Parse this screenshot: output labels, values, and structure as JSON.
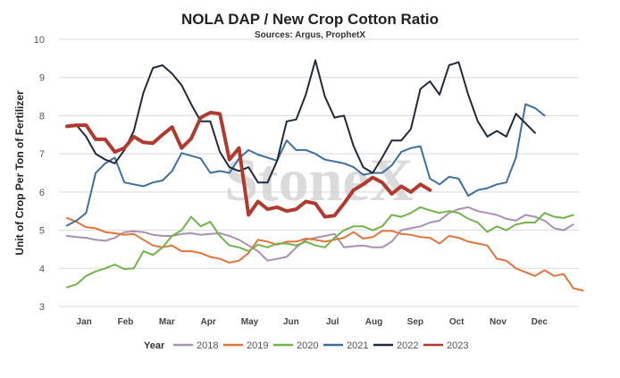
{
  "chart_data": {
    "type": "line",
    "title": "NOLA DAP / New Crop Cotton Ratio",
    "subtitle": "Sources: Argus, ProphetX",
    "ylabel": "Unit of Crop Per Ton of Fertilizer",
    "xlabel": "",
    "ylim": [
      3,
      10
    ],
    "yticks": [
      3,
      4,
      5,
      6,
      7,
      8,
      9,
      10
    ],
    "x_month_labels": [
      "Jan",
      "Feb",
      "Mar",
      "Apr",
      "May",
      "Jun",
      "Jul",
      "Aug",
      "Sep",
      "Oct",
      "Nov",
      "Dec"
    ],
    "legend_title": "Year",
    "legend_position": "bottom",
    "watermark": "StoneX",
    "grid": "horizontal",
    "series": [
      {
        "name": "2018",
        "color": "#a98fb3",
        "values": [
          4.85,
          4.82,
          4.8,
          4.75,
          4.72,
          4.8,
          4.95,
          4.97,
          4.95,
          4.88,
          4.85,
          4.85,
          4.9,
          4.92,
          4.88,
          4.9,
          4.92,
          4.85,
          4.75,
          4.6,
          4.45,
          4.2,
          4.25,
          4.3,
          4.55,
          4.75,
          4.8,
          4.85,
          4.9,
          4.55,
          4.58,
          4.6,
          4.55,
          4.55,
          4.7,
          5.0,
          5.05,
          5.1,
          5.2,
          5.25,
          5.45,
          5.55,
          5.6,
          5.5,
          5.45,
          5.4,
          5.3,
          5.25,
          5.4,
          5.35,
          5.25,
          5.05,
          5.0,
          5.15
        ]
      },
      {
        "name": "2019",
        "color": "#e2743a",
        "values": [
          5.32,
          5.22,
          5.08,
          5.05,
          4.95,
          4.92,
          4.88,
          4.9,
          4.75,
          4.6,
          4.55,
          4.6,
          4.45,
          4.45,
          4.4,
          4.3,
          4.25,
          4.15,
          4.2,
          4.4,
          4.75,
          4.7,
          4.62,
          4.7,
          4.7,
          4.78,
          4.75,
          4.7,
          4.75,
          4.8,
          4.95,
          4.78,
          4.82,
          4.98,
          4.98,
          4.9,
          4.88,
          4.82,
          4.8,
          4.65,
          4.85,
          4.8,
          4.7,
          4.65,
          4.6,
          4.25,
          4.2,
          4.0,
          3.9,
          3.8,
          3.95,
          3.8,
          3.85,
          3.48,
          3.42
        ]
      },
      {
        "name": "2020",
        "color": "#72b34a",
        "values": [
          3.5,
          3.58,
          3.8,
          3.92,
          4.0,
          4.1,
          3.98,
          4.0,
          4.45,
          4.35,
          4.55,
          4.85,
          5.0,
          5.35,
          5.1,
          5.22,
          4.85,
          4.6,
          4.55,
          4.45,
          4.62,
          4.55,
          4.65,
          4.65,
          4.6,
          4.7,
          4.6,
          4.55,
          4.8,
          5.0,
          5.1,
          5.1,
          5.0,
          5.1,
          5.4,
          5.35,
          5.45,
          5.6,
          5.52,
          5.45,
          5.5,
          5.45,
          5.3,
          5.2,
          4.95,
          5.1,
          5.0,
          5.15,
          5.2,
          5.2,
          5.45,
          5.35,
          5.32,
          5.4
        ]
      },
      {
        "name": "2021",
        "color": "#3f6f9e",
        "values": [
          5.12,
          5.25,
          5.45,
          6.5,
          6.75,
          6.9,
          6.25,
          6.2,
          6.15,
          6.25,
          6.3,
          6.55,
          7.02,
          6.95,
          6.88,
          6.5,
          6.55,
          6.5,
          6.88,
          7.1,
          6.98,
          6.9,
          6.82,
          7.35,
          7.1,
          7.1,
          7.0,
          6.85,
          6.8,
          6.75,
          6.65,
          6.45,
          6.5,
          6.5,
          6.7,
          7.05,
          7.15,
          7.2,
          6.35,
          6.2,
          6.4,
          6.35,
          5.9,
          6.05,
          6.1,
          6.2,
          6.25,
          6.9,
          8.3,
          8.2,
          8.0
        ]
      },
      {
        "name": "2022",
        "color": "#1f2a3a",
        "values": [
          7.7,
          7.75,
          7.45,
          7.0,
          6.85,
          6.75,
          7.1,
          7.6,
          8.6,
          9.25,
          9.32,
          9.1,
          8.8,
          8.3,
          7.85,
          7.85,
          7.05,
          6.65,
          6.55,
          6.65,
          6.25,
          6.25,
          6.82,
          7.85,
          7.9,
          8.55,
          9.45,
          8.5,
          7.95,
          8.0,
          7.2,
          6.65,
          6.5,
          6.9,
          7.35,
          7.35,
          7.65,
          8.7,
          8.9,
          8.55,
          9.32,
          9.4,
          8.55,
          7.85,
          7.45,
          7.6,
          7.45,
          8.05,
          7.8,
          7.55
        ]
      },
      {
        "name": "2023",
        "color": "#b03a2e",
        "width": 4,
        "values": [
          7.72,
          7.75,
          7.75,
          7.38,
          7.38,
          7.05,
          7.15,
          7.45,
          7.3,
          7.28,
          7.5,
          7.7,
          7.15,
          7.4,
          7.95,
          8.08,
          8.05,
          6.85,
          7.15,
          5.4,
          5.75,
          5.55,
          5.6,
          5.5,
          5.55,
          5.75,
          5.7,
          5.35,
          5.38,
          5.7,
          6.05,
          6.2,
          6.38,
          6.25,
          5.95,
          6.15,
          6.0,
          6.2,
          6.05
        ]
      }
    ]
  }
}
